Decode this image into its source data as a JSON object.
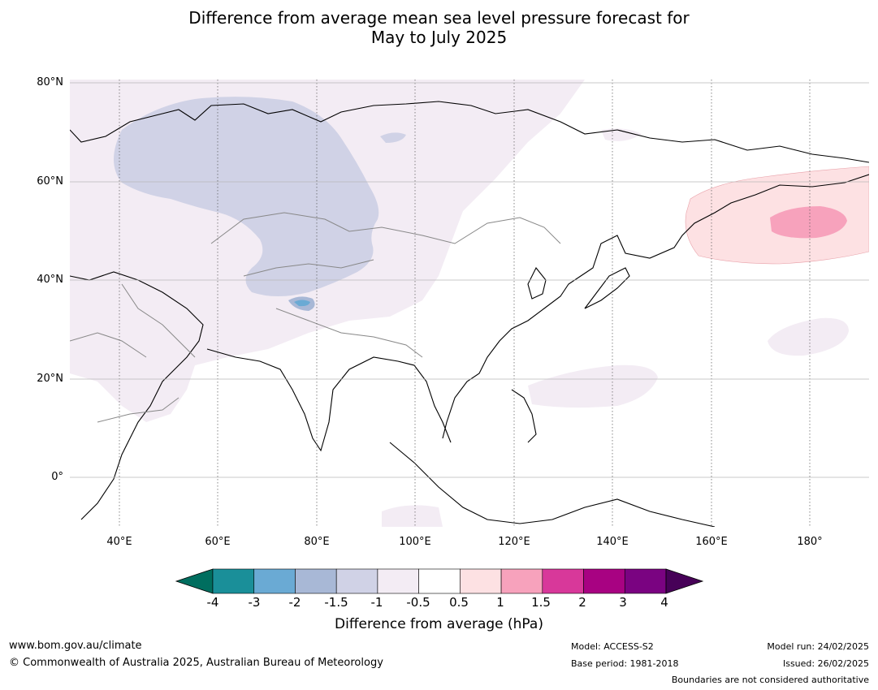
{
  "title": {
    "line1": "Difference from average mean sea level pressure forecast for",
    "line2": "May to July 2025"
  },
  "lat_labels": [
    "80°N",
    "60°N",
    "40°N",
    "20°N",
    "0°"
  ],
  "lon_labels": [
    "40°E",
    "60°E",
    "80°E",
    "100°E",
    "120°E",
    "140°E",
    "160°E",
    "180°"
  ],
  "colorbar": {
    "ticks": [
      "-4",
      "-3",
      "-2",
      "-1.5",
      "-1",
      "-0.5",
      "0.5",
      "1",
      "1.5",
      "2",
      "3",
      "4"
    ],
    "colors": [
      "#1a8f99",
      "#6aaad4",
      "#a8b8d6",
      "#d0d2e6",
      "#f3ecf4",
      "#ffffff",
      "#fde1e3",
      "#f7a2bc",
      "#d8389a",
      "#a80282",
      "#7a0381"
    ],
    "under_color": "#006e5f",
    "over_color": "#470158",
    "label": "Difference from average (hPa)"
  },
  "footer": {
    "website": "www.bom.gov.au/climate",
    "copyright": "© Commonwealth of Australia 2025, Australian Bureau of Meteorology",
    "model": "Model: ACCESS-S2",
    "base_period": "Base period: 1981-2018",
    "model_run": "Model run: 24/02/2025",
    "issued": "Issued: 26/02/2025",
    "disclaimer": "Boundaries are not considered authoritative"
  }
}
